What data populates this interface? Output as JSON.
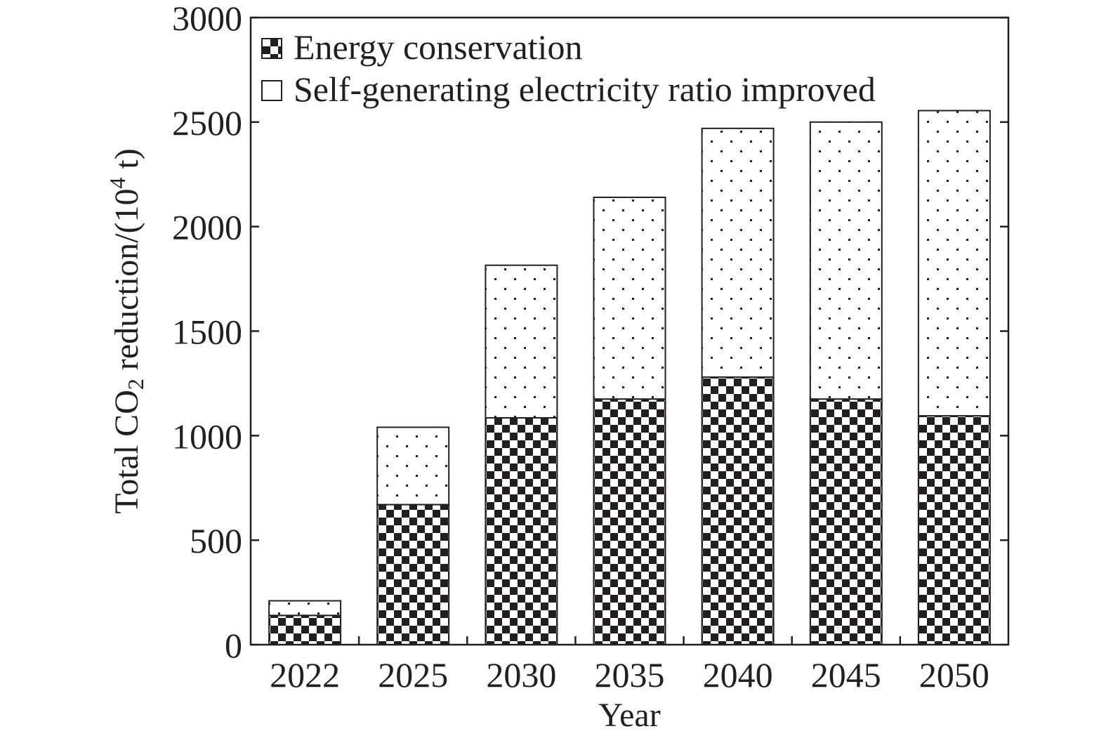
{
  "chart_data": {
    "type": "bar",
    "stacked": true,
    "categories": [
      "2022",
      "2025",
      "2030",
      "2035",
      "2040",
      "2045",
      "2050"
    ],
    "series": [
      {
        "name": "Energy conservation",
        "values": [
          140,
          670,
          1085,
          1175,
          1280,
          1175,
          1095
        ]
      },
      {
        "name": "Self-generating electricity ratio improved",
        "values": [
          70,
          370,
          730,
          965,
          1190,
          1325,
          1460
        ]
      }
    ],
    "xlabel": "Year",
    "ylabel": {
      "main": "Total CO",
      "sub": "2",
      "mid": " reduction/(10",
      "sup": "4",
      "end": " t)"
    },
    "ylim": [
      0,
      3000
    ],
    "yticks": [
      0,
      500,
      1000,
      1500,
      2000,
      2500,
      3000
    ],
    "legend_position": "top-left",
    "grid": false,
    "colors": {
      "ink": "#231f20",
      "fill": "#ffffff"
    }
  }
}
